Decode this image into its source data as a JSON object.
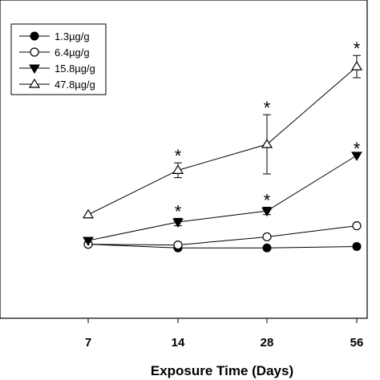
{
  "chart_data": {
    "type": "line",
    "xlabel": "Exposure Time (Days)",
    "ylabel": "",
    "x": [
      7,
      14,
      28,
      56
    ],
    "x_tick_labels": [
      "7",
      "14",
      "28",
      "56"
    ],
    "grid": false,
    "legend_position": "top-left",
    "series": [
      {
        "name": "1.3µg/g",
        "marker": "filled-circle",
        "values": [
          1.0,
          0.95,
          0.95,
          0.97
        ],
        "errors": [
          0.02,
          0.02,
          0.02,
          0.02
        ],
        "significant": [
          false,
          false,
          false,
          false
        ]
      },
      {
        "name": "6.4µg/g",
        "marker": "open-circle",
        "values": [
          1.0,
          0.99,
          1.1,
          1.25
        ],
        "errors": [
          0.02,
          0.02,
          0.02,
          0.02
        ],
        "significant": [
          false,
          false,
          false,
          false
        ]
      },
      {
        "name": "15.8µg/g",
        "marker": "filled-triangle-down",
        "values": [
          1.05,
          1.3,
          1.45,
          2.2
        ],
        "errors": [
          0.02,
          0.05,
          0.05,
          0.03
        ],
        "significant": [
          false,
          true,
          true,
          true
        ]
      },
      {
        "name": "47.8µg/g",
        "marker": "open-triangle-up",
        "values": [
          1.4,
          2.0,
          2.35,
          3.4
        ],
        "errors": [
          0.02,
          0.1,
          0.4,
          0.15
        ],
        "significant": [
          false,
          true,
          true,
          true
        ]
      }
    ],
    "significance_marker": "*",
    "ylim": [
      0,
      4.3
    ]
  }
}
